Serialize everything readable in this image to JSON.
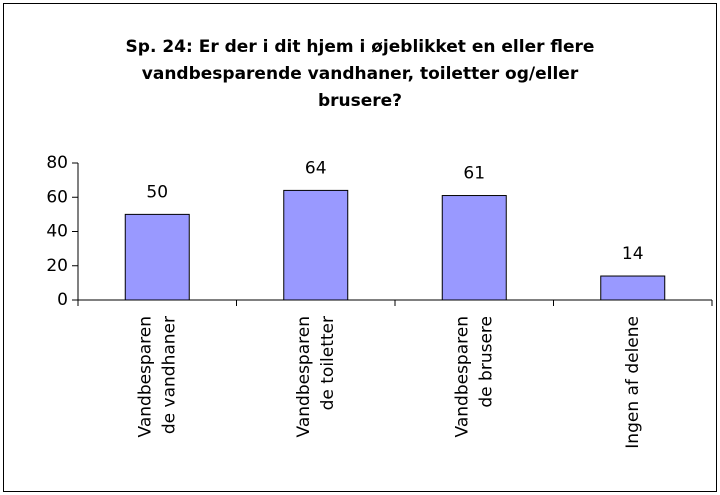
{
  "chart_data": {
    "type": "bar",
    "title": [
      "Sp. 24: Er der i dit hjem i øjeblikket en eller flere",
      "vandbesparende vandhaner, toiletter og/eller",
      "brusere?"
    ],
    "categories": [
      [
        "Vandbesparen",
        "de vandhaner"
      ],
      [
        "Vandbesparen",
        "de toiletter"
      ],
      [
        "Vandbesparen",
        "de brusere"
      ],
      [
        "Ingen af delene"
      ]
    ],
    "values": [
      50,
      64,
      61,
      14
    ],
    "color": "#9999ff",
    "ylim": [
      0,
      80
    ],
    "yticks": [
      0,
      20,
      40,
      60,
      80
    ]
  }
}
